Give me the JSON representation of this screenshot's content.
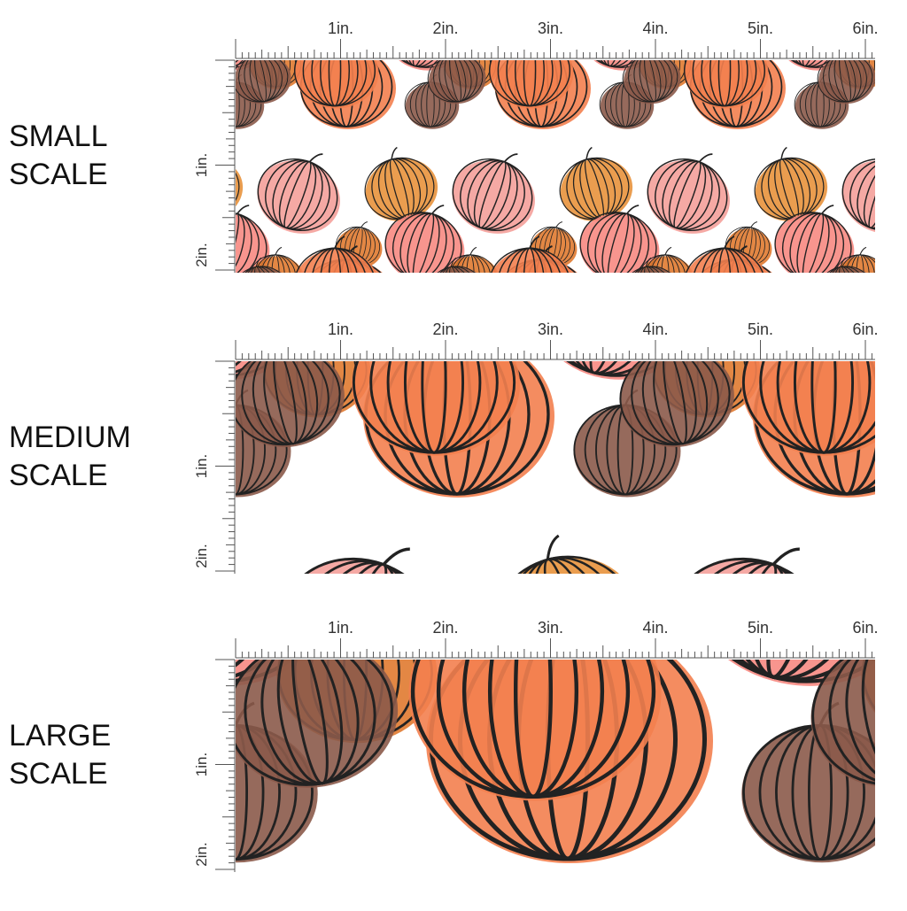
{
  "panels": [
    {
      "label": [
        "SMALL",
        "SCALE"
      ],
      "ruler": {
        "top": [
          "1in.",
          "2in.",
          "3in.",
          "4in.",
          "5in.",
          "6in."
        ],
        "side": [
          "1in.",
          "2in."
        ]
      }
    },
    {
      "label": [
        "MEDIUM",
        "SCALE"
      ],
      "ruler": {
        "top": [
          "1in.",
          "2in.",
          "3in.",
          "4in.",
          "5in.",
          "6in."
        ],
        "side": [
          "1in.",
          "2in."
        ]
      }
    },
    {
      "label": [
        "LARGE",
        "SCALE"
      ],
      "ruler": {
        "top": [
          "1in.",
          "2in.",
          "3in.",
          "4in.",
          "5in.",
          "6in."
        ],
        "side": [
          "1in.",
          "2in."
        ]
      }
    }
  ]
}
